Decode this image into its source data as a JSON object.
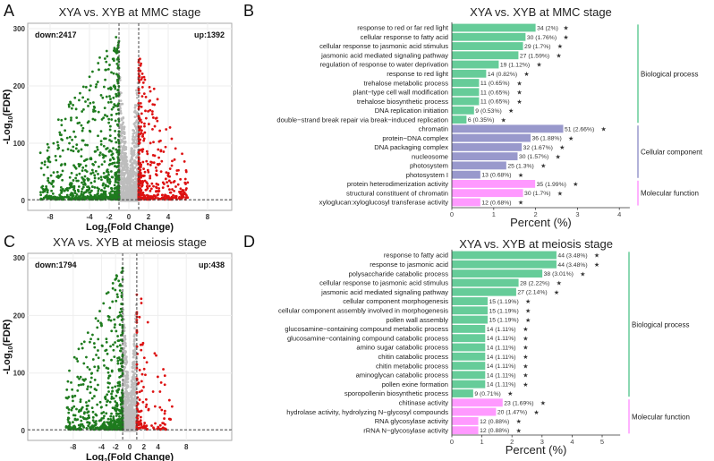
{
  "panel_labels": [
    "A",
    "B",
    "C",
    "D"
  ],
  "chart_data": [
    {
      "panel": "A",
      "type": "scatter",
      "title": "XYA vs. XYB at MMC stage",
      "xlabel": "Log2(Fold Change)",
      "ylabel": "-Log10(FDR)",
      "xticks": [
        -8,
        -4,
        -2,
        0,
        2,
        4,
        8
      ],
      "yticks": [
        0,
        100,
        200,
        300
      ],
      "xlim": [
        -10.3,
        10.5
      ],
      "ylim": [
        -30,
        310
      ],
      "fc_threshold": [
        -1,
        1
      ],
      "fdr_threshold_line": 1.3,
      "grid": true,
      "down_label": "down:2417",
      "up_label": "up:1392",
      "down_count": 2417,
      "up_count": 1392,
      "colors": {
        "down": "#1e7b1e",
        "up": "#dd1111",
        "ns": "#bdbdbd"
      }
    },
    {
      "panel": "B",
      "type": "bar",
      "orientation": "horizontal",
      "title": "XYA vs. XYB at MMC stage",
      "xlabel": "Percent (%)",
      "xticks": [
        0,
        1,
        2,
        3,
        4
      ],
      "xlim": [
        0,
        4.25
      ],
      "star": "★",
      "groups": [
        {
          "name": "Biological process",
          "color": "#66cc99",
          "items": [
            {
              "term": "response to red or far red light",
              "count": 34,
              "percent": 2,
              "label": "34 (2%)"
            },
            {
              "term": "cellular response to fatty acid",
              "count": 30,
              "percent": 1.76,
              "label": "30 (1.76%)"
            },
            {
              "term": "cellular response to jasmonic acid stimulus",
              "count": 29,
              "percent": 1.7,
              "label": "29 (1.7%)"
            },
            {
              "term": "jasmonic acid mediated signaling pathway",
              "count": 27,
              "percent": 1.59,
              "label": "27 (1.59%)"
            },
            {
              "term": "regulation of response to water deprivation",
              "count": 19,
              "percent": 1.12,
              "label": "19 (1.12%)"
            },
            {
              "term": "response to red light",
              "count": 14,
              "percent": 0.82,
              "label": "14 (0.82%)"
            },
            {
              "term": "trehalose metabolic process",
              "count": 11,
              "percent": 0.65,
              "label": "11 (0.65%)"
            },
            {
              "term": "plant−type cell wall modification",
              "count": 11,
              "percent": 0.65,
              "label": "11 (0.65%)"
            },
            {
              "term": "trehalose biosynthetic process",
              "count": 11,
              "percent": 0.65,
              "label": "11 (0.65%)"
            },
            {
              "term": "DNA replication initiation",
              "count": 9,
              "percent": 0.53,
              "label": "9 (0.53%)"
            },
            {
              "term": "double−strand break repair via break−induced replication",
              "count": 6,
              "percent": 0.35,
              "label": "6 (0.35%)"
            }
          ]
        },
        {
          "name": "Cellular component",
          "color": "#9999cc",
          "items": [
            {
              "term": "chromatin",
              "count": 51,
              "percent": 2.66,
              "label": "51 (2.66%)"
            },
            {
              "term": "protein−DNA complex",
              "count": 36,
              "percent": 1.88,
              "label": "36 (1.88%)"
            },
            {
              "term": "DNA packaging complex",
              "count": 32,
              "percent": 1.67,
              "label": "32 (1.67%)"
            },
            {
              "term": "nucleosome",
              "count": 30,
              "percent": 1.57,
              "label": "30 (1.57%)"
            },
            {
              "term": "photosystem",
              "count": 25,
              "percent": 1.3,
              "label": "25 (1.3%)"
            },
            {
              "term": "photosystem I",
              "count": 13,
              "percent": 0.68,
              "label": "13 (0.68%)"
            }
          ]
        },
        {
          "name": "Molecular function",
          "color": "#ff99ff",
          "items": [
            {
              "term": "protein heterodimerization activity",
              "count": 35,
              "percent": 1.99,
              "label": "35 (1.99%)"
            },
            {
              "term": "structural constituent of chromatin",
              "count": 30,
              "percent": 1.7,
              "label": "30 (1.7%)"
            },
            {
              "term": "xyloglucan:xyloglucosyl transferase activity",
              "count": 12,
              "percent": 0.68,
              "label": "12 (0.68%)"
            }
          ]
        }
      ]
    },
    {
      "panel": "C",
      "type": "scatter",
      "title": "XYA vs. XYB at meiosis stage",
      "xlabel": "Log2(Fold Change)",
      "ylabel": "-Log10(FDR)",
      "xticks": [
        -8,
        -4,
        -2,
        0,
        2,
        4,
        8
      ],
      "yticks": [
        0,
        100,
        200,
        300
      ],
      "xlim": [
        -14.4,
        14.4
      ],
      "ylim": [
        -30,
        310
      ],
      "fc_threshold": [
        -1,
        1
      ],
      "fdr_threshold_line": 1.3,
      "grid": true,
      "down_label": "down:1794",
      "up_label": "up:438",
      "down_count": 1794,
      "up_count": 438,
      "colors": {
        "down": "#1e7b1e",
        "up": "#dd1111",
        "ns": "#bdbdbd"
      }
    },
    {
      "panel": "D",
      "type": "bar",
      "orientation": "horizontal",
      "title": "XYA vs. XYB at meiosis stage",
      "xlabel": "Percent (%)",
      "xticks": [
        0,
        1,
        2,
        3,
        4,
        5
      ],
      "xlim": [
        0,
        5.6
      ],
      "star": "★",
      "groups": [
        {
          "name": "Biological process",
          "color": "#66cc99",
          "items": [
            {
              "term": "response to fatty acid",
              "count": 44,
              "percent": 3.48,
              "label": "44 (3.48%)"
            },
            {
              "term": "response to jasmonic acid",
              "count": 44,
              "percent": 3.48,
              "label": "44 (3.48%)"
            },
            {
              "term": "polysaccharide catabolic process",
              "count": 38,
              "percent": 3.01,
              "label": "38 (3.01%)"
            },
            {
              "term": "cellular response to jasmonic acid stimulus",
              "count": 28,
              "percent": 2.22,
              "label": "28 (2.22%)"
            },
            {
              "term": "jasmonic acid mediated signaling pathway",
              "count": 27,
              "percent": 2.14,
              "label": "27 (2.14%)"
            },
            {
              "term": "cellular component morphogenesis",
              "count": 15,
              "percent": 1.19,
              "label": "15 (1.19%)"
            },
            {
              "term": "cellular component assembly involved in morphogenesis",
              "count": 15,
              "percent": 1.19,
              "label": "15 (1.19%)"
            },
            {
              "term": "pollen wall assembly",
              "count": 15,
              "percent": 1.19,
              "label": "15 (1.19%)"
            },
            {
              "term": "glucosamine−containing compound metabolic process",
              "count": 14,
              "percent": 1.11,
              "label": "14 (1.11%)"
            },
            {
              "term": "glucosamine−containing compound catabolic process",
              "count": 14,
              "percent": 1.11,
              "label": "14 (1.11%)"
            },
            {
              "term": "amino sugar catabolic process",
              "count": 14,
              "percent": 1.11,
              "label": "14 (1.11%)"
            },
            {
              "term": "chitin catabolic process",
              "count": 14,
              "percent": 1.11,
              "label": "14 (1.11%)"
            },
            {
              "term": "chitin metabolic process",
              "count": 14,
              "percent": 1.11,
              "label": "14 (1.11%)"
            },
            {
              "term": "aminoglycan catabolic process",
              "count": 14,
              "percent": 1.11,
              "label": "14 (1.11%)"
            },
            {
              "term": "pollen exine formation",
              "count": 14,
              "percent": 1.11,
              "label": "14 (1.11%)"
            },
            {
              "term": "sporopollenin biosynthetic process",
              "count": 9,
              "percent": 0.71,
              "label": "9 (0.71%)"
            }
          ]
        },
        {
          "name": "Molecular function",
          "color": "#ff99ff",
          "items": [
            {
              "term": "chitinase activity",
              "count": 23,
              "percent": 1.69,
              "label": "23 (1.69%)"
            },
            {
              "term": "hydrolase activity, hydrolyzing N−glycosyl compounds",
              "count": 20,
              "percent": 1.47,
              "label": "20 (1.47%)"
            },
            {
              "term": "RNA glycosylase activity",
              "count": 12,
              "percent": 0.88,
              "label": "12 (0.88%)"
            },
            {
              "term": "rRNA N−glycosylase activity",
              "count": 12,
              "percent": 0.88,
              "label": "12 (0.88%)"
            }
          ]
        }
      ]
    }
  ]
}
